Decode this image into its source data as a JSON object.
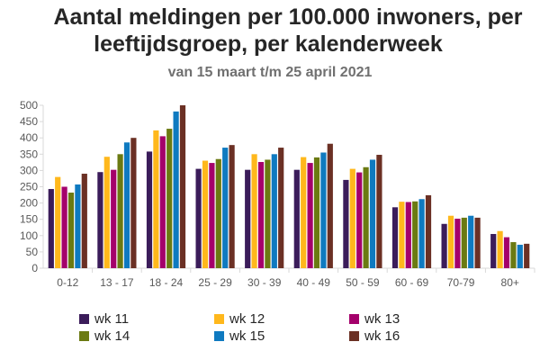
{
  "chart_data": {
    "type": "bar",
    "title_line1": "Aantal meldingen per 100.000 inwoners, per",
    "title_line2": "leeftijdsgroep, per kalenderweek",
    "subtitle": "van 15 maart t/m 25 april 2021",
    "xlabel": "",
    "ylabel": "",
    "ylim": [
      0,
      500
    ],
    "yticks": [
      0,
      50,
      100,
      150,
      200,
      250,
      300,
      350,
      400,
      450,
      500
    ],
    "grid": false,
    "legend_position": "bottom",
    "categories": [
      "0-12",
      "13 - 17",
      "18 - 24",
      "25 - 29",
      "30 - 39",
      "40 - 49",
      "50 - 59",
      "60 - 69",
      "70-79",
      "80+"
    ],
    "series": [
      {
        "name": "wk 11",
        "color": "#3b1c5a",
        "values": [
          243,
          295,
          358,
          305,
          302,
          302,
          271,
          187,
          136,
          105
        ]
      },
      {
        "name": "wk 12",
        "color": "#ffb81c",
        "values": [
          280,
          342,
          423,
          330,
          350,
          341,
          305,
          204,
          161,
          114
        ]
      },
      {
        "name": "wk 13",
        "color": "#a4006b",
        "values": [
          250,
          302,
          405,
          323,
          326,
          323,
          294,
          203,
          152,
          95
        ]
      },
      {
        "name": "wk 14",
        "color": "#6b7a12",
        "values": [
          232,
          350,
          428,
          335,
          333,
          340,
          310,
          205,
          155,
          80
        ]
      },
      {
        "name": "wk 15",
        "color": "#0f7ac0",
        "values": [
          257,
          386,
          481,
          370,
          350,
          355,
          333,
          212,
          161,
          72
        ]
      },
      {
        "name": "wk 16",
        "color": "#6b3024",
        "values": [
          290,
          400,
          500,
          378,
          370,
          382,
          348,
          224,
          155,
          75
        ]
      }
    ]
  }
}
